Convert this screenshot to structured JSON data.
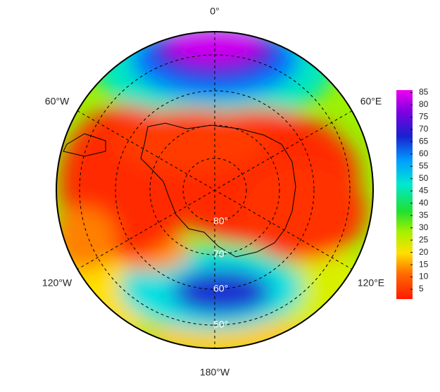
{
  "map": {
    "longitude_labels": [
      "0°",
      "60°E",
      "120°E",
      "180°W",
      "120°W",
      "60°W"
    ],
    "latitude_labels": [
      "80°",
      "70°",
      "60°",
      "50°"
    ],
    "colorbar": {
      "lim": [
        1,
        86
      ],
      "ticks": [
        5,
        10,
        15,
        20,
        25,
        30,
        35,
        40,
        45,
        50,
        55,
        60,
        65,
        70,
        75,
        80,
        85
      ]
    }
  }
}
